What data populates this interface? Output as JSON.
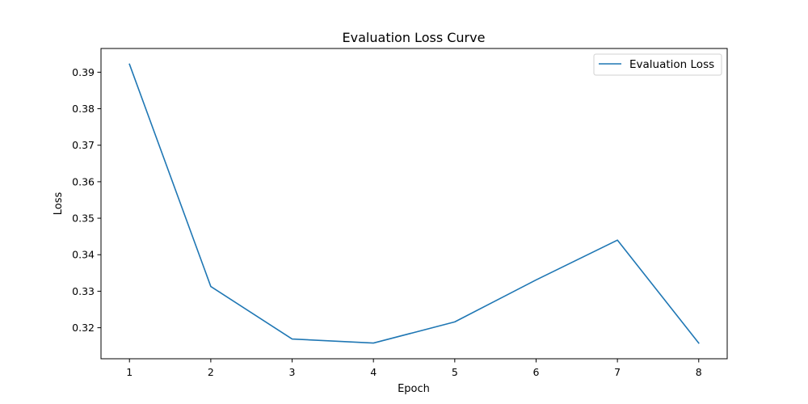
{
  "chart_data": {
    "type": "line",
    "title": "Evaluation Loss Curve",
    "xlabel": "Epoch",
    "ylabel": "Loss",
    "x": [
      1,
      2,
      3,
      4,
      5,
      6,
      7,
      8
    ],
    "series": [
      {
        "name": "Evaluation Loss",
        "color": "#1f77b4",
        "values": [
          0.3922,
          0.3313,
          0.3169,
          0.3158,
          0.3216,
          0.3331,
          0.344,
          0.3158
        ]
      }
    ],
    "xlim": [
      0.65,
      8.35
    ],
    "ylim": [
      0.3115,
      0.3965
    ],
    "xticks": [
      "1",
      "2",
      "3",
      "4",
      "5",
      "6",
      "7",
      "8"
    ],
    "yticks": [
      "0.32",
      "0.33",
      "0.34",
      "0.35",
      "0.36",
      "0.37",
      "0.38",
      "0.39"
    ],
    "grid": false,
    "legend": "upper right"
  }
}
